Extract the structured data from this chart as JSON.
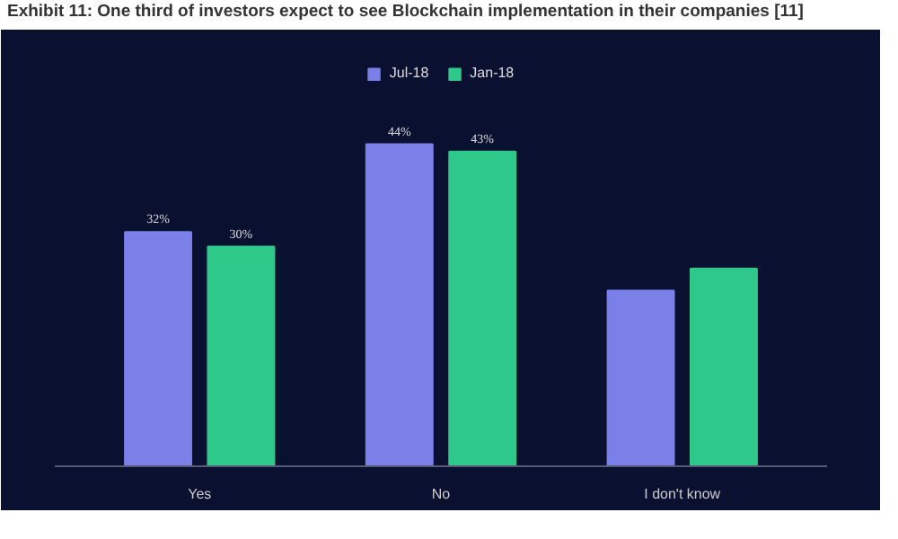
{
  "chart_data": {
    "type": "bar",
    "title": "Exhibit 11: One third of investors expect to see Blockchain implementation in their companies [11]",
    "categories": [
      "Yes",
      "No",
      "I don't know"
    ],
    "series": [
      {
        "name": "Jul-18",
        "color": "#7b7fe8",
        "values": [
          32,
          44,
          24
        ],
        "value_labels": [
          "32%",
          "44%",
          null
        ]
      },
      {
        "name": "Jan-18",
        "color": "#2ec98a",
        "values": [
          30,
          43,
          27
        ],
        "value_labels": [
          "30%",
          "43%",
          null
        ]
      }
    ],
    "legend": "top",
    "grid": false
  }
}
